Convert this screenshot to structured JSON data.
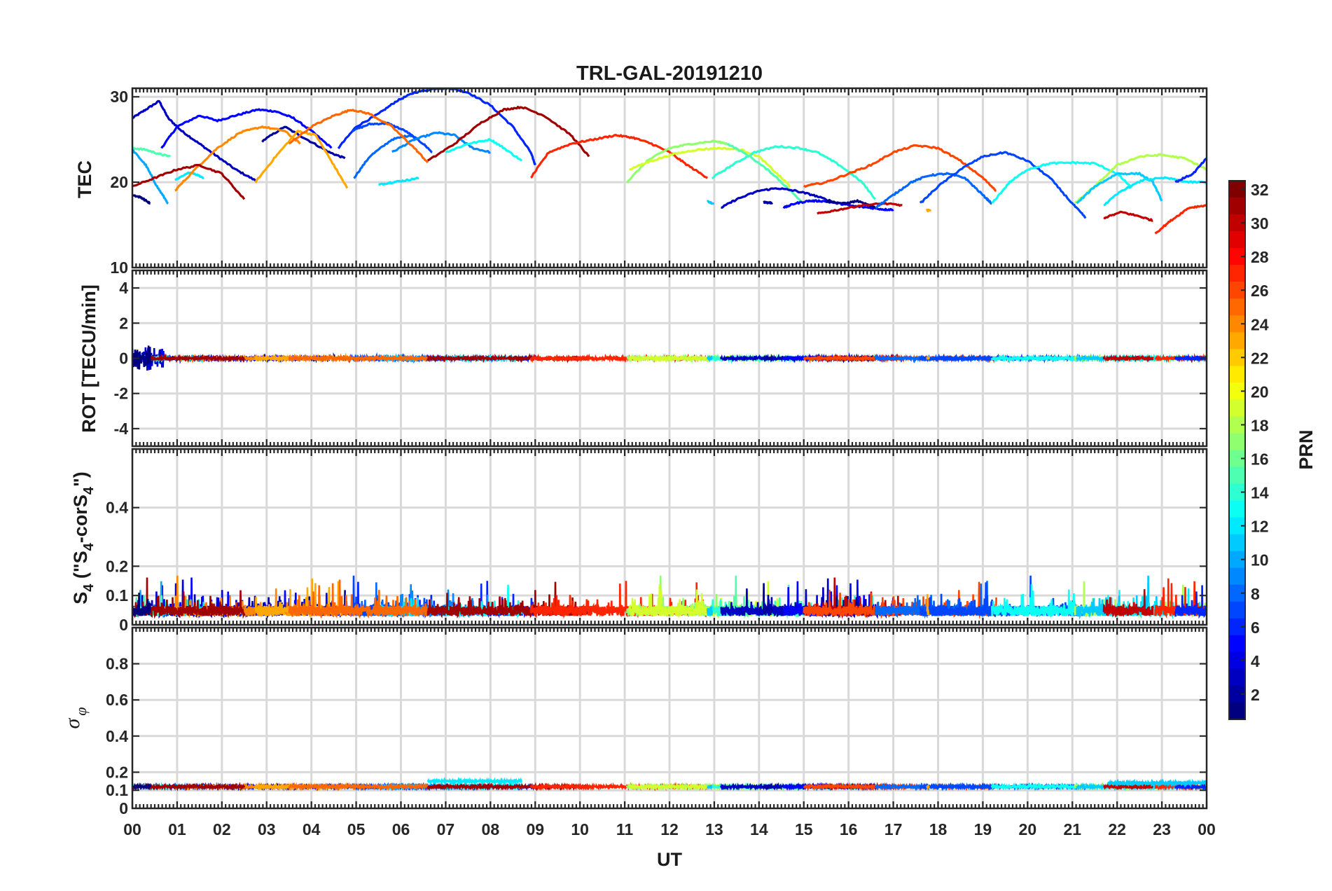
{
  "chart_data": {
    "type": "line",
    "title": "TRL-GAL-20191210",
    "xlabel": "UT",
    "xlim": [
      0,
      24
    ],
    "x_tick_labels": [
      "00",
      "01",
      "02",
      "03",
      "04",
      "05",
      "06",
      "07",
      "08",
      "09",
      "10",
      "11",
      "12",
      "13",
      "14",
      "15",
      "16",
      "17",
      "18",
      "19",
      "20",
      "21",
      "22",
      "23",
      "00"
    ],
    "colorbar": {
      "label": "PRN",
      "colormap": "jet",
      "range": [
        1,
        32
      ],
      "tick_labels": [
        "2",
        "4",
        "6",
        "8",
        "10",
        "12",
        "14",
        "16",
        "18",
        "20",
        "22",
        "24",
        "26",
        "28",
        "30",
        "32"
      ]
    },
    "panels": [
      {
        "id": "tec",
        "ylabel": "TEC",
        "ylim": [
          10,
          31
        ],
        "y_tick_labels": [
          "10",
          "20",
          "30"
        ],
        "series": [
          {
            "prn": 3,
            "x": [
              0.0,
              0.3,
              0.6,
              0.8,
              1.1,
              1.5,
              1.9,
              2.3,
              2.75
            ],
            "y": [
              27.5,
              28.5,
              29.5,
              27.5,
              26.0,
              24.5,
              23.0,
              21.5,
              20.2
            ]
          },
          {
            "prn": 5,
            "x": [
              0.65,
              1.0,
              1.5,
              1.9,
              2.3,
              2.8,
              3.2,
              3.6,
              4.0,
              4.45
            ],
            "y": [
              24.0,
              26.5,
              27.8,
              27.2,
              27.8,
              28.5,
              28.3,
              27.5,
              26.0,
              24.0
            ]
          },
          {
            "prn": 2,
            "x": [
              2.9,
              3.4,
              3.9,
              4.4,
              4.75
            ],
            "y": [
              24.8,
              26.5,
              25.0,
              23.5,
              22.8
            ]
          },
          {
            "prn": 6,
            "x": [
              4.6,
              5.0,
              5.5,
              5.9,
              6.3,
              6.8,
              7.1,
              7.5,
              8.0,
              8.5,
              8.9,
              9.0
            ],
            "y": [
              24.0,
              26.5,
              28.0,
              29.5,
              30.5,
              31.0,
              31.0,
              30.5,
              29.0,
              26.5,
              23.5,
              22.0
            ]
          },
          {
            "prn": 8,
            "x": [
              4.95,
              5.3,
              5.8,
              6.2,
              6.4
            ],
            "y": [
              20.5,
              23.0,
              25.0,
              25.5,
              25.0
            ]
          },
          {
            "prn": 7,
            "x": [
              4.9,
              5.3,
              5.7,
              6.1,
              6.5,
              6.7
            ],
            "y": [
              26.0,
              26.8,
              26.9,
              26.0,
              24.5,
              23.5
            ]
          },
          {
            "prn": 9,
            "x": [
              5.8,
              6.3,
              6.8,
              7.2,
              7.6,
              8.0
            ],
            "y": [
              23.5,
              25.0,
              25.8,
              25.5,
              24.0,
              23.5
            ]
          },
          {
            "prn": 10,
            "x": [
              0.0,
              0.3,
              0.55,
              0.8
            ],
            "y": [
              23.8,
              22.0,
              19.5,
              17.5
            ]
          },
          {
            "prn": 12,
            "x": [
              0.95,
              1.3,
              1.6
            ],
            "y": [
              20.2,
              21.2,
              20.5
            ]
          },
          {
            "prn": 13,
            "x": [
              7.0,
              7.5,
              8.0,
              8.3,
              8.7
            ],
            "y": [
              23.5,
              24.5,
              25.0,
              24.0,
              22.5
            ]
          },
          {
            "prn": 12,
            "x": [
              5.5,
              5.8,
              6.1,
              6.4
            ],
            "y": [
              19.7,
              20.0,
              20.2,
              20.5
            ]
          },
          {
            "prn": 15,
            "x": [
              0.0,
              0.3,
              0.6,
              0.85
            ],
            "y": [
              24.0,
              23.8,
              23.3,
              23.0
            ]
          },
          {
            "prn": 24,
            "x": [
              0.95,
              1.4,
              1.9,
              2.4,
              2.9,
              3.4,
              3.75
            ],
            "y": [
              19.0,
              21.5,
              24.0,
              25.8,
              26.5,
              26.0,
              24.5
            ]
          },
          {
            "prn": 23,
            "x": [
              2.75,
              3.2,
              3.7,
              4.1,
              4.5,
              4.8
            ],
            "y": [
              20.0,
              23.0,
              26.0,
              25.5,
              22.0,
              19.3
            ]
          },
          {
            "prn": 25,
            "x": [
              3.5,
              4.0,
              4.5,
              4.9,
              5.3,
              5.8,
              6.3,
              6.6
            ],
            "y": [
              24.5,
              26.5,
              27.8,
              28.5,
              28.0,
              26.5,
              24.0,
              22.3
            ]
          },
          {
            "prn": 31,
            "x": [
              0.0,
              0.5,
              1.0,
              1.5,
              2.0,
              2.5
            ],
            "y": [
              19.5,
              20.5,
              21.5,
              22.0,
              21.0,
              18.0
            ]
          },
          {
            "prn": 1,
            "x": [
              0.0,
              0.2,
              0.4
            ],
            "y": [
              18.5,
              18.2,
              17.5
            ]
          },
          {
            "prn": 31,
            "x": [
              6.6,
              7.2,
              7.8,
              8.3,
              8.7,
              9.2,
              9.8,
              10.2
            ],
            "y": [
              22.5,
              24.5,
              27.0,
              28.5,
              28.8,
              27.8,
              25.5,
              23.0
            ]
          },
          {
            "prn": 27,
            "x": [
              8.9,
              9.3,
              9.8,
              10.3,
              10.8,
              11.2,
              11.6,
              12.0,
              12.4,
              12.85
            ],
            "y": [
              20.5,
              23.5,
              24.5,
              25.0,
              25.5,
              25.2,
              24.5,
              23.5,
              22.0,
              20.5
            ]
          },
          {
            "prn": 17,
            "x": [
              11.05,
              11.5,
              12.0,
              12.5,
              13.0,
              13.3
            ],
            "y": [
              20.0,
              22.5,
              24.0,
              24.5,
              24.8,
              24.5
            ]
          },
          {
            "prn": 19,
            "x": [
              11.1,
              11.6,
              12.1,
              12.6,
              13.1,
              13.6,
              14.0,
              14.4,
              14.7
            ],
            "y": [
              21.5,
              22.5,
              23.3,
              23.8,
              24.0,
              23.8,
              23.0,
              21.0,
              19.5
            ]
          },
          {
            "prn": 14,
            "x": [
              12.95,
              13.4,
              13.9,
              14.4,
              14.9,
              15.3,
              15.8,
              16.3,
              16.6
            ],
            "y": [
              20.5,
              22.0,
              23.5,
              24.2,
              24.0,
              23.5,
              22.0,
              20.0,
              18.0
            ]
          },
          {
            "prn": 15,
            "x": [
              13.3,
              13.8,
              14.3,
              14.7,
              15.0
            ],
            "y": [
              24.5,
              23.0,
              21.0,
              19.0,
              17.5
            ]
          },
          {
            "prn": 11,
            "x": [
              12.85,
              12.95
            ],
            "y": [
              17.8,
              17.5
            ]
          },
          {
            "prn": 3,
            "x": [
              13.15,
              13.5,
              14.0,
              14.4,
              14.8,
              15.2,
              15.6
            ],
            "y": [
              17.0,
              18.0,
              19.0,
              19.3,
              19.0,
              18.5,
              17.8
            ]
          },
          {
            "prn": 2,
            "x": [
              14.1,
              14.2,
              14.3
            ],
            "y": [
              17.7,
              17.6,
              17.6
            ]
          },
          {
            "prn": 5,
            "x": [
              14.55,
              14.8,
              15.1,
              15.4,
              15.8,
              16.1,
              16.5,
              16.8,
              17.0
            ],
            "y": [
              17.0,
              17.5,
              17.8,
              17.8,
              17.5,
              17.2,
              17.0,
              16.8,
              16.8
            ]
          },
          {
            "prn": 1,
            "x": [
              15.5,
              15.9,
              16.2,
              16.6
            ],
            "y": [
              17.8,
              17.5,
              17.8,
              17.0
            ]
          },
          {
            "prn": 30,
            "x": [
              15.3,
              15.8,
              16.3,
              16.8,
              17.2
            ],
            "y": [
              16.3,
              16.8,
              17.3,
              17.5,
              17.3
            ]
          },
          {
            "prn": 26,
            "x": [
              15.0,
              15.5,
              16.0,
              16.5,
              17.0,
              17.5,
              18.0,
              18.5,
              19.0,
              19.3
            ],
            "y": [
              19.5,
              20.0,
              21.0,
              22.0,
              23.5,
              24.3,
              24.0,
              22.5,
              20.5,
              19.0
            ]
          },
          {
            "prn": 8,
            "x": [
              16.6,
              17.0,
              17.4,
              17.8,
              18.2,
              18.6,
              19.0,
              19.2
            ],
            "y": [
              17.0,
              18.5,
              20.0,
              20.8,
              21.0,
              20.5,
              18.5,
              17.5
            ]
          },
          {
            "prn": 7,
            "x": [
              17.6,
              18.0,
              18.5,
              19.0,
              19.5,
              20.0,
              20.5,
              21.0,
              21.3
            ],
            "y": [
              17.5,
              19.5,
              21.5,
              23.0,
              23.5,
              22.5,
              20.5,
              17.5,
              15.8
            ]
          },
          {
            "prn": 23,
            "x": [
              17.75,
              17.8
            ],
            "y": [
              16.7,
              16.7
            ]
          },
          {
            "prn": 13,
            "x": [
              19.2,
              19.6,
              20.0,
              20.5,
              21.0,
              21.5,
              22.0,
              22.3
            ],
            "y": [
              17.5,
              20.0,
              21.5,
              22.2,
              22.3,
              22.2,
              21.0,
              19.5
            ]
          },
          {
            "prn": 18,
            "x": [
              21.05,
              21.5,
              22.0,
              22.5,
              23.0,
              23.5,
              24.0
            ],
            "y": [
              17.5,
              19.5,
              22.0,
              23.0,
              23.2,
              22.8,
              21.5
            ]
          },
          {
            "prn": 11,
            "x": [
              21.1,
              21.5,
              22.0,
              22.5,
              22.8,
              23.0
            ],
            "y": [
              17.5,
              19.5,
              21.0,
              21.0,
              20.0,
              17.8
            ]
          },
          {
            "prn": 12,
            "x": [
              21.7,
              22.1,
              22.6,
              23.1,
              23.6,
              24.0
            ],
            "y": [
              17.3,
              19.0,
              20.3,
              20.5,
              20.0,
              20.0
            ]
          },
          {
            "prn": 30,
            "x": [
              21.7,
              22.1,
              22.5,
              22.8
            ],
            "y": [
              15.8,
              16.5,
              16.0,
              15.5
            ]
          },
          {
            "prn": 27,
            "x": [
              22.85,
              23.2,
              23.6,
              24.0
            ],
            "y": [
              14.0,
              15.5,
              17.0,
              17.3
            ]
          },
          {
            "prn": 6,
            "x": [
              23.3,
              23.7,
              24.0
            ],
            "y": [
              20.0,
              21.0,
              22.8
            ]
          }
        ]
      },
      {
        "id": "rot",
        "ylabel": "ROT [TECU/min]",
        "ylim": [
          -5,
          5
        ],
        "y_tick_labels": [
          "-4",
          "-2",
          "0",
          "2",
          "4"
        ],
        "values_near": 0,
        "amplitude": 0.15,
        "burst": {
          "x_range": [
            0.0,
            0.7
          ],
          "amplitude": 0.8
        }
      },
      {
        "id": "s4",
        "ylabel": "S4 (\"S4-corS4\")",
        "ylabel_parts": {
          "base": "S",
          "sub": "4",
          "open": " (\"S",
          "sub2": "4",
          "mid": "-corS",
          "sub3": "4",
          "close": "\")"
        },
        "ylim": [
          0,
          0.6
        ],
        "y_tick_labels": [
          "0",
          "0.1",
          "0.2",
          "0.4"
        ],
        "baseline": 0.03,
        "peak_max": 0.17
      },
      {
        "id": "sigma_phi",
        "ylabel": "σ φ",
        "ylabel_parts": {
          "base": "σ",
          "sub": "φ"
        },
        "ylim": [
          0,
          1
        ],
        "y_tick_labels": [
          "0",
          "0.1",
          "0.2",
          "0.4",
          "0.6",
          "0.8"
        ],
        "baseline": 0.12,
        "raised_segments": [
          {
            "prn": 12,
            "x": [
              6.6,
              8.7
            ],
            "value": 0.15
          },
          {
            "prn": 11,
            "x": [
              21.8,
              24.0
            ],
            "value": 0.14
          }
        ]
      }
    ]
  }
}
